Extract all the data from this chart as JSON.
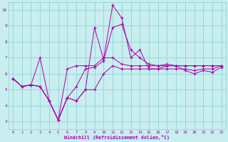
{
  "xlabel": "Windchill (Refroidissement éolien,°C)",
  "bg_color": "#c8eef0",
  "line_color": "#aa00aa",
  "grid_color": "#88cccc",
  "xlim": [
    -0.5,
    23.5
  ],
  "ylim": [
    2.5,
    10.5
  ],
  "xticks": [
    0,
    1,
    2,
    3,
    4,
    5,
    6,
    7,
    8,
    9,
    10,
    11,
    12,
    13,
    14,
    15,
    16,
    17,
    18,
    19,
    20,
    21,
    22,
    23
  ],
  "yticks": [
    3,
    4,
    5,
    6,
    7,
    8,
    9,
    10
  ],
  "series1_y": [
    5.7,
    5.2,
    5.3,
    7.0,
    4.3,
    3.1,
    6.3,
    6.5,
    6.5,
    6.5,
    7.0,
    7.0,
    6.6,
    6.5,
    6.5,
    6.5,
    6.5,
    6.5,
    6.5,
    6.5,
    6.5,
    6.5,
    6.5,
    6.5
  ],
  "series2_y": [
    5.7,
    5.2,
    5.3,
    5.2,
    4.3,
    3.1,
    4.5,
    5.2,
    6.3,
    6.4,
    6.8,
    8.9,
    9.1,
    7.5,
    7.0,
    6.6,
    6.5,
    6.6,
    6.5,
    6.5,
    6.5,
    6.5,
    6.5,
    6.5
  ],
  "series3_y": [
    5.7,
    5.2,
    5.3,
    5.2,
    4.3,
    3.1,
    4.5,
    4.3,
    5.0,
    8.9,
    6.9,
    10.3,
    9.5,
    7.0,
    7.5,
    6.3,
    6.3,
    6.5,
    6.5,
    6.2,
    6.0,
    6.2,
    6.1,
    6.4
  ],
  "series4_y": [
    5.7,
    5.2,
    5.3,
    5.2,
    4.3,
    3.1,
    4.5,
    4.3,
    5.0,
    5.0,
    6.0,
    6.5,
    6.3,
    6.3,
    6.3,
    6.3,
    6.3,
    6.3,
    6.3,
    6.3,
    6.2,
    6.3,
    6.3,
    6.5
  ]
}
